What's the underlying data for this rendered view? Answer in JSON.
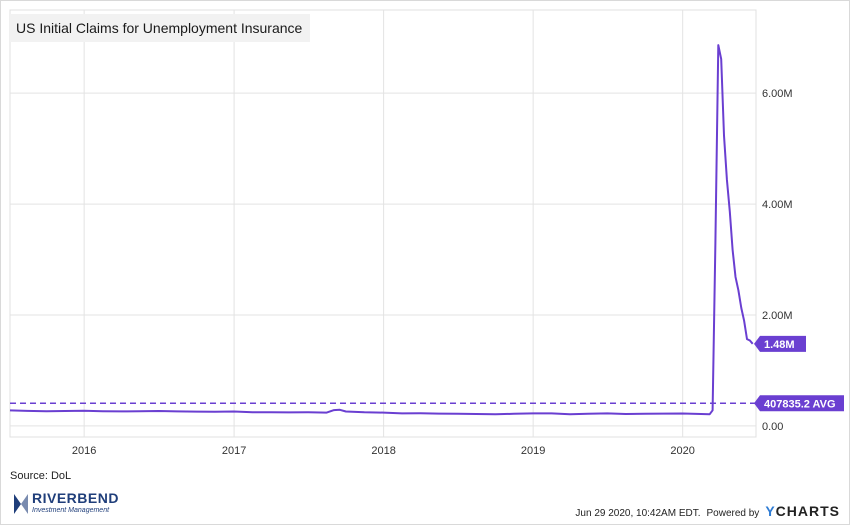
{
  "chart_data": {
    "type": "line",
    "title": "US Initial Claims for Unemployment Insurance",
    "x_tick_labels": [
      "2016",
      "2017",
      "2018",
      "2019",
      "2020"
    ],
    "y_tick_labels": [
      "0.00",
      "2.00M",
      "4.00M",
      "6.00M"
    ],
    "ylim": [
      -200000,
      7500000
    ],
    "grid": true,
    "series": [
      {
        "color": "#6a3fd1",
        "x": [
          "2015-07-04",
          "2015-08-15",
          "2015-10-01",
          "2015-11-15",
          "2016-01-01",
          "2016-02-15",
          "2016-04-01",
          "2016-05-15",
          "2016-07-01",
          "2016-08-15",
          "2016-10-01",
          "2016-11-15",
          "2017-01-01",
          "2017-02-15",
          "2017-04-01",
          "2017-05-15",
          "2017-07-01",
          "2017-08-15",
          "2017-09-02",
          "2017-09-16",
          "2017-10-01",
          "2017-11-15",
          "2018-01-01",
          "2018-02-15",
          "2018-04-01",
          "2018-05-15",
          "2018-07-01",
          "2018-08-15",
          "2018-10-01",
          "2018-11-15",
          "2019-01-01",
          "2019-02-15",
          "2019-04-01",
          "2019-05-15",
          "2019-07-01",
          "2019-08-15",
          "2019-10-01",
          "2019-11-15",
          "2020-01-01",
          "2020-02-15",
          "2020-03-07",
          "2020-03-14",
          "2020-03-21",
          "2020-03-28",
          "2020-04-04",
          "2020-04-11",
          "2020-04-18",
          "2020-04-25",
          "2020-05-02",
          "2020-05-09",
          "2020-05-16",
          "2020-05-23",
          "2020-05-30",
          "2020-06-06",
          "2020-06-13",
          "2020-06-20"
        ],
        "y": [
          280000,
          270000,
          265000,
          268000,
          275000,
          265000,
          262000,
          263000,
          268000,
          262000,
          258000,
          255000,
          260000,
          248000,
          245000,
          243000,
          245000,
          240000,
          285000,
          290000,
          260000,
          245000,
          240000,
          225000,
          228000,
          222000,
          220000,
          215000,
          210000,
          218000,
          225000,
          226000,
          212000,
          220000,
          225000,
          215000,
          220000,
          222000,
          224000,
          215000,
          211000,
          282000,
          3307000,
          6867000,
          6615000,
          5237000,
          4442000,
          3867000,
          3176000,
          2687000,
          2446000,
          2126000,
          1897000,
          1566000,
          1540000,
          1480000
        ]
      }
    ],
    "reference_line": {
      "value": 407835.2,
      "label": "407835.2 AVG",
      "color": "#6a3fd1",
      "style": "dashed"
    },
    "last_value_label": "1.48M"
  },
  "source_text": "Source: DoL",
  "logo": {
    "name": "RIVERBEND",
    "subtitle": "Investment Management"
  },
  "footer": {
    "timestamp": "Jun 29 2020, 10:42AM EDT.",
    "powered_by": "Powered by",
    "brand_y": "Y",
    "brand_rest": "CHARTS"
  }
}
